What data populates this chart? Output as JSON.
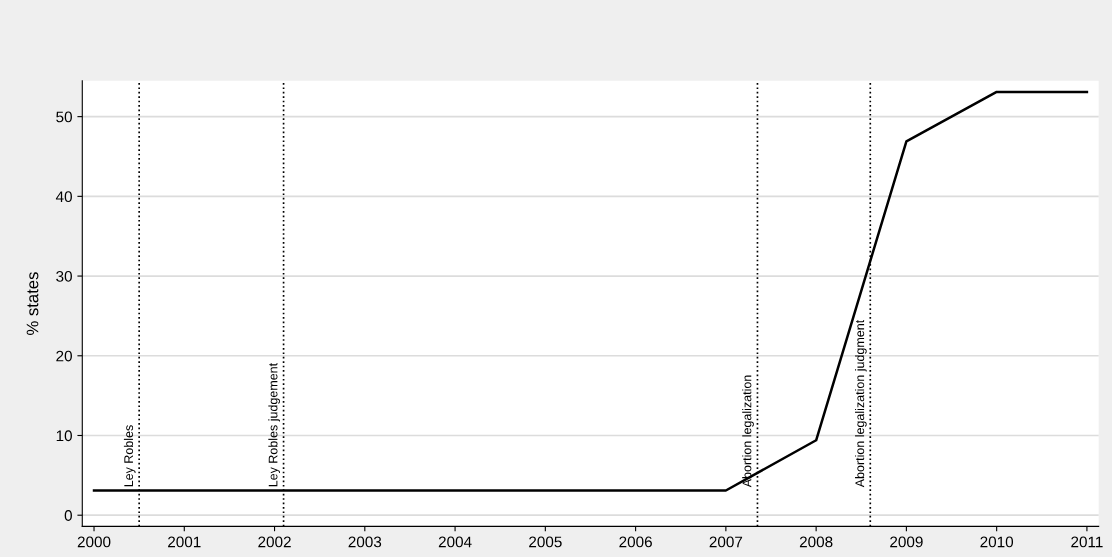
{
  "chart_data": {
    "type": "line",
    "ylabel": "% states",
    "x": [
      2000,
      2001,
      2002,
      2003,
      2004,
      2005,
      2006,
      2007,
      2008,
      2009,
      2010,
      2011
    ],
    "series": [
      {
        "color": "#000000",
        "values": [
          3.1,
          3.1,
          3.1,
          3.1,
          3.1,
          3.1,
          3.1,
          3.1,
          9.4,
          46.9,
          53.1,
          53.1
        ]
      }
    ],
    "xlim": [
      1999.87,
      2011.13
    ],
    "xticks": [
      2000,
      2001,
      2002,
      2003,
      2004,
      2005,
      2006,
      2007,
      2008,
      2009,
      2010,
      2011
    ],
    "ylim": [
      -1.4,
      54.5
    ],
    "yticks": [
      0,
      10,
      20,
      30,
      40,
      50
    ],
    "grid": "y",
    "legend": false,
    "marker": "none",
    "line_style": "solid",
    "ref_lines": [
      {
        "axis": "x",
        "value": 2000.5,
        "label": "Ley Robles",
        "color": "#000000",
        "line_style": "dotted"
      },
      {
        "axis": "x",
        "value": 2002.1,
        "label": "Ley Robles judgement",
        "color": "#000000",
        "line_style": "dotted"
      },
      {
        "axis": "x",
        "value": 2007.35,
        "label": "Abortion legalization",
        "color": "#000000",
        "line_style": "dotted"
      },
      {
        "axis": "x",
        "value": 2008.6,
        "label": "Abortion legalization judgment",
        "color": "#000000",
        "line_style": "dotted"
      }
    ]
  }
}
